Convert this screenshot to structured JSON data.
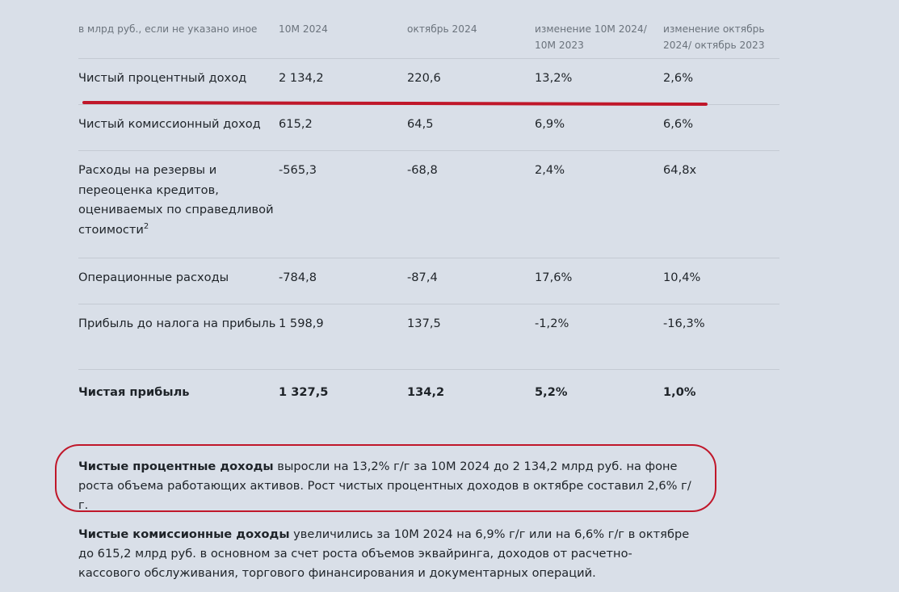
{
  "table": {
    "headers": [
      "в млрд руб., если не указано иное",
      "10М 2024",
      "октябрь 2024",
      "изменение 10М 2024/ 10М 2023",
      "изменение октябрь 2024/ октябрь 2023"
    ],
    "rows": [
      {
        "label": "Чистый процентный доход",
        "values": [
          "2 134,2",
          "220,6",
          "13,2%",
          "2,6%"
        ]
      },
      {
        "label": "Чистый комиссионный доход",
        "values": [
          "615,2",
          "64,5",
          "6,9%",
          "6,6%"
        ]
      },
      {
        "label": "Расходы на резервы и переоценка кредитов, оцениваемых по справедливой стоимости",
        "footnote": "2",
        "values": [
          "-565,3",
          "-68,8",
          "2,4%",
          "64,8x"
        ]
      },
      {
        "label": "Операционные расходы",
        "values": [
          "-784,8",
          "-87,4",
          "17,6%",
          "10,4%"
        ]
      },
      {
        "label": "Прибыль до налога на прибыль",
        "values": [
          "1 598,9",
          "137,5",
          "-1,2%",
          "-16,3%"
        ]
      },
      {
        "label": "Чистая прибыль",
        "values": [
          "1 327,5",
          "134,2",
          "5,2%",
          "1,0%"
        ]
      }
    ]
  },
  "paragraphs": [
    {
      "bold": "Чистые процентные доходы",
      "text": " выросли на 13,2% г/г за 10М 2024 до 2 134,2 млрд руб. на фоне роста объема работающих активов. Рост чистых процентных доходов в октябре составил 2,6% г/г."
    },
    {
      "bold": "Чистые комиссионные доходы",
      "text": " увеличились за 10М 2024 на 6,9% г/г или на 6,6% г/г в октябре до 615,2 млрд руб. в основном за счет роста объемов эквайринга, доходов от расчетно-кассового обслуживания, торгового финансирования и документарных операций."
    }
  ],
  "annotations": {
    "highlight_color": "#c0172a"
  }
}
